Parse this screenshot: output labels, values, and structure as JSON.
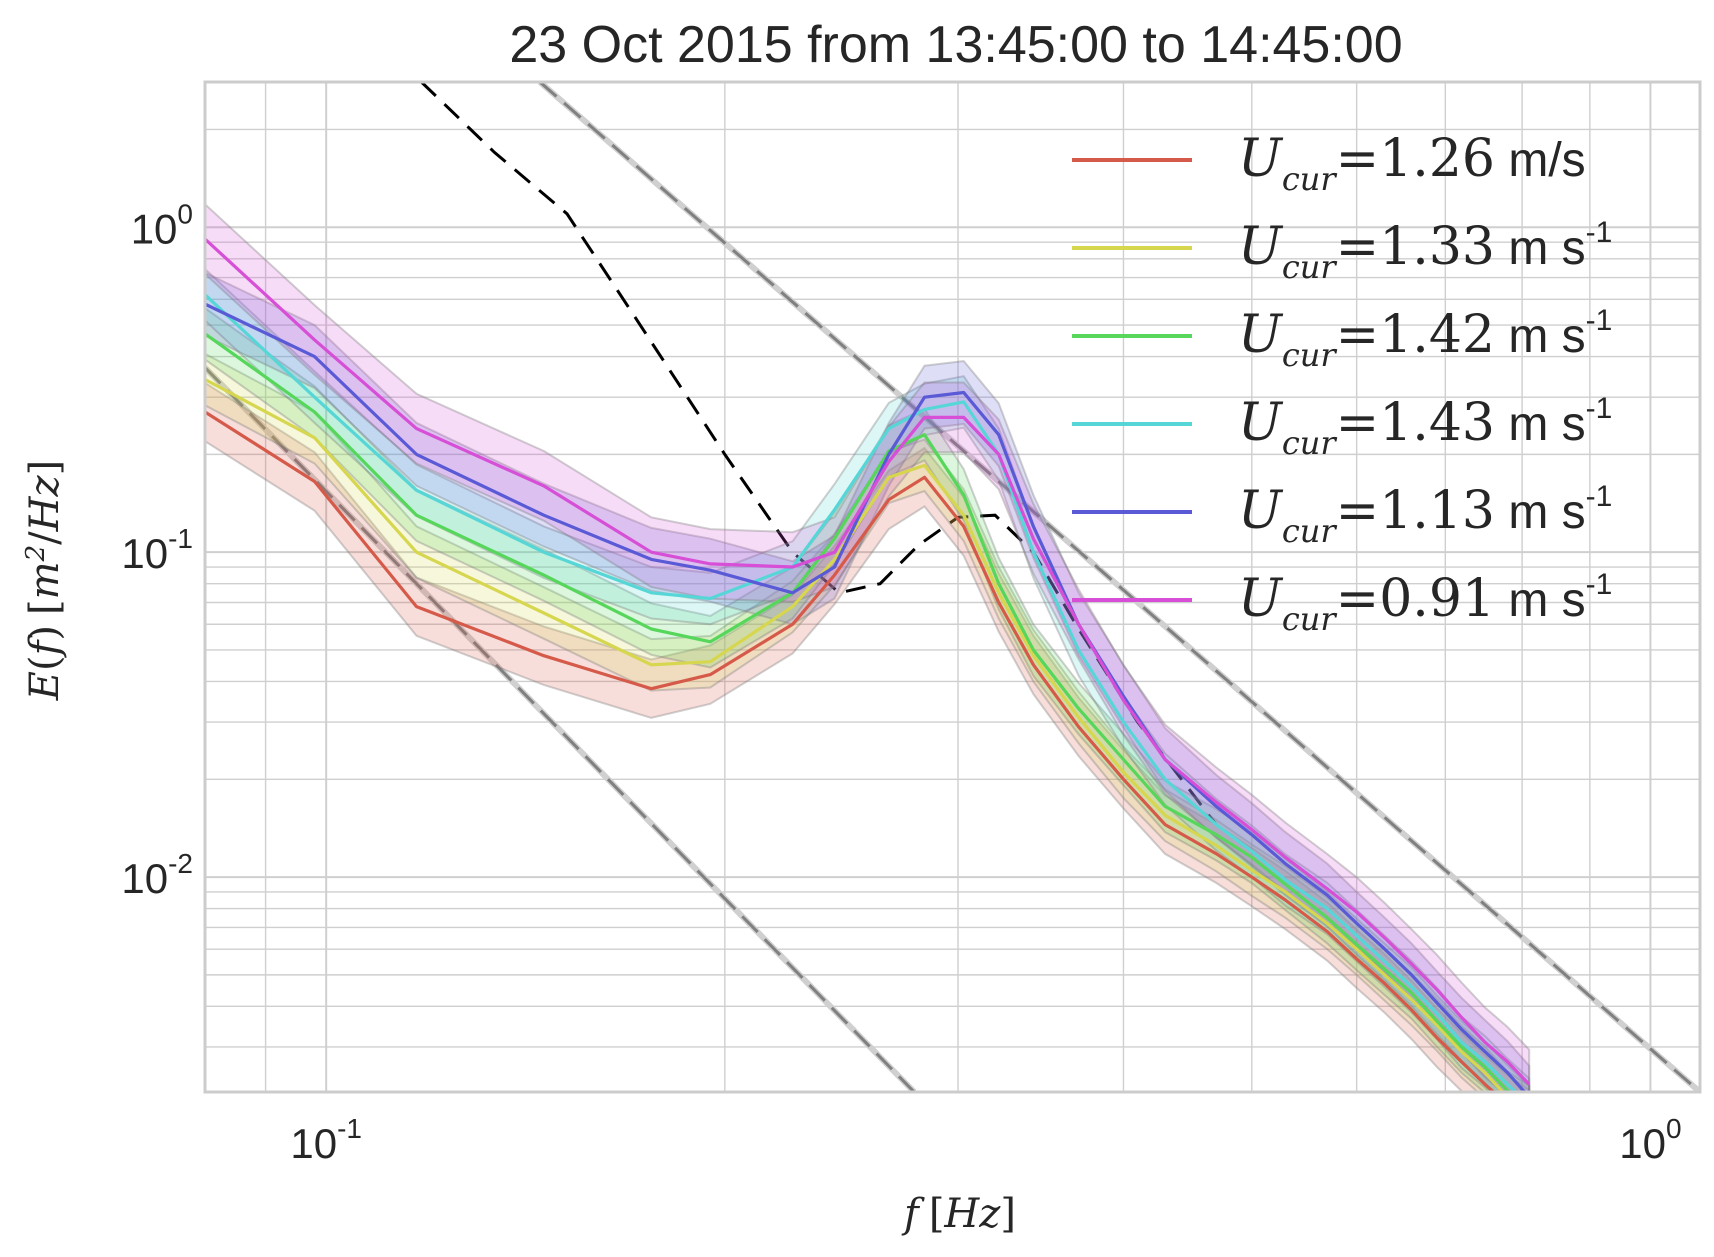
{
  "chart_data": {
    "type": "line",
    "title": "23 Oct 2015 from 13:45:00 to 14:45:00",
    "xlabel": "f [Hz]",
    "ylabel": "E(f) [m²/Hz]",
    "xscale": "log",
    "yscale": "log",
    "xlim": [
      0.081,
      1.09
    ],
    "ylim": [
      0.00218,
      2.8
    ],
    "grid": true,
    "legend_position": "top-right",
    "x_ticks": [
      {
        "value": 0.1,
        "base": "10",
        "exp": "-1"
      },
      {
        "value": 1.0,
        "base": "10",
        "exp": "0"
      }
    ],
    "y_ticks": [
      {
        "value": 0.01,
        "base": "10",
        "exp": "-2"
      },
      {
        "value": 0.1,
        "base": "10",
        "exp": "-1"
      },
      {
        "value": 1.0,
        "base": "10",
        "exp": "0"
      }
    ],
    "x": [
      0.081,
      0.098,
      0.117,
      0.146,
      0.176,
      0.195,
      0.225,
      0.242,
      0.266,
      0.283,
      0.303,
      0.322,
      0.342,
      0.37,
      0.4,
      0.43,
      0.47,
      0.5,
      0.53,
      0.57,
      0.6,
      0.63,
      0.66,
      0.69,
      0.72,
      0.75,
      0.78,
      0.81
    ],
    "series": [
      {
        "name": "U_cur=1.26 m/s",
        "legend_math": "U",
        "legend_sub": "cur",
        "legend_value": "=1.26",
        "legend_unit": "m/s",
        "legend_unit_exp": "",
        "color": "#d65a4a",
        "values": [
          0.27,
          0.165,
          0.068,
          0.048,
          0.038,
          0.042,
          0.06,
          0.085,
          0.145,
          0.17,
          0.12,
          0.07,
          0.045,
          0.029,
          0.02,
          0.0145,
          0.0118,
          0.01,
          0.0085,
          0.0068,
          0.0056,
          0.0047,
          0.0039,
          0.0032,
          0.0027,
          0.0023,
          0.002,
          0.0018
        ],
        "band": 0.23
      },
      {
        "name": "U_cur=1.33 m s-1",
        "legend_math": "U",
        "legend_sub": "cur",
        "legend_value": "=1.33",
        "legend_unit": "m s",
        "legend_unit_exp": "-1",
        "color": "#d6d64f",
        "values": [
          0.34,
          0.225,
          0.1,
          0.065,
          0.045,
          0.046,
          0.068,
          0.095,
          0.17,
          0.185,
          0.13,
          0.075,
          0.048,
          0.031,
          0.021,
          0.0155,
          0.0125,
          0.0105,
          0.009,
          0.0072,
          0.006,
          0.005,
          0.0042,
          0.0035,
          0.0029,
          0.0025,
          0.0021,
          0.0019
        ],
        "band": 0.2
      },
      {
        "name": "U_cur=1.42 m s-1",
        "legend_math": "U",
        "legend_sub": "cur",
        "legend_value": "=1.42",
        "legend_unit": "m s",
        "legend_unit_exp": "-1",
        "color": "#56d65a",
        "values": [
          0.47,
          0.27,
          0.13,
          0.085,
          0.058,
          0.053,
          0.075,
          0.11,
          0.205,
          0.23,
          0.15,
          0.08,
          0.05,
          0.033,
          0.023,
          0.0165,
          0.0135,
          0.0115,
          0.0095,
          0.0075,
          0.0062,
          0.0052,
          0.0044,
          0.0036,
          0.003,
          0.0026,
          0.0022,
          0.0019
        ],
        "band": 0.2
      },
      {
        "name": "U_cur=1.43 m s-1",
        "legend_math": "U",
        "legend_sub": "cur",
        "legend_value": "=1.43",
        "legend_unit": "m s",
        "legend_unit_exp": "-1",
        "color": "#56d6d6",
        "values": [
          0.62,
          0.3,
          0.155,
          0.1,
          0.075,
          0.072,
          0.09,
          0.135,
          0.24,
          0.275,
          0.29,
          0.2,
          0.1,
          0.05,
          0.03,
          0.02,
          0.0145,
          0.012,
          0.0098,
          0.008,
          0.0066,
          0.0055,
          0.0046,
          0.0038,
          0.0031,
          0.0027,
          0.0023,
          0.002
        ],
        "band": 0.2
      },
      {
        "name": "U_cur=1.13 m s-1",
        "legend_math": "U",
        "legend_sub": "cur",
        "legend_value": "=1.13",
        "legend_unit": "m s",
        "legend_unit_exp": "-1",
        "color": "#5a5ad6",
        "values": [
          0.58,
          0.4,
          0.2,
          0.13,
          0.095,
          0.088,
          0.075,
          0.09,
          0.2,
          0.3,
          0.31,
          0.23,
          0.12,
          0.06,
          0.036,
          0.023,
          0.0165,
          0.0135,
          0.011,
          0.0088,
          0.0072,
          0.006,
          0.005,
          0.0041,
          0.0034,
          0.0029,
          0.0025,
          0.0021
        ],
        "band": 0.25
      },
      {
        "name": "U_cur=0.91 m s-1",
        "legend_math": "U",
        "legend_sub": "cur",
        "legend_value": "=0.91",
        "legend_unit": "m s",
        "legend_unit_exp": "-1",
        "color": "#d64fd6",
        "values": [
          0.92,
          0.45,
          0.24,
          0.16,
          0.1,
          0.092,
          0.09,
          0.1,
          0.19,
          0.26,
          0.26,
          0.2,
          0.11,
          0.06,
          0.035,
          0.023,
          0.017,
          0.014,
          0.0115,
          0.0092,
          0.0078,
          0.0065,
          0.0054,
          0.0045,
          0.0037,
          0.0031,
          0.0027,
          0.0023
        ],
        "band": 0.28
      }
    ],
    "reference_dashed": {
      "color": "#000000",
      "x": [
        0.118,
        0.134,
        0.152,
        0.17,
        0.2,
        0.225,
        0.244,
        0.262,
        0.28,
        0.3,
        0.32,
        0.342,
        0.37,
        0.41,
        0.47
      ],
      "values": [
        2.8,
        1.7,
        1.1,
        0.55,
        0.2,
        0.1,
        0.075,
        0.08,
        0.105,
        0.128,
        0.13,
        0.1,
        0.058,
        0.03,
        0.0145
      ]
    },
    "reference_lines": [
      {
        "color": "#808080",
        "x": [
          0.081,
          0.278
        ],
        "values": [
          0.37,
          0.00218
        ]
      },
      {
        "color": "#808080",
        "x": [
          0.145,
          1.09
        ],
        "values": [
          2.8,
          0.00218
        ]
      }
    ]
  }
}
